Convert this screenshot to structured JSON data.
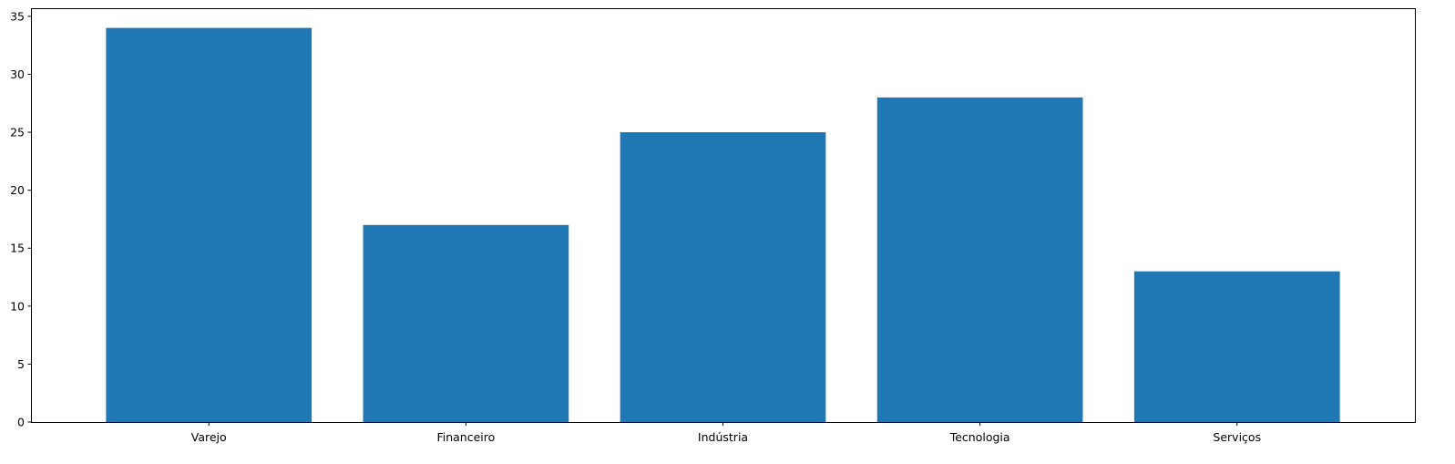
{
  "chart_data": {
    "type": "bar",
    "title": "",
    "xlabel": "",
    "ylabel": "",
    "categories": [
      "Varejo",
      "Financeiro",
      "Indústria",
      "Tecnologia",
      "Serviços"
    ],
    "values": [
      34,
      17,
      25,
      28,
      13
    ],
    "ylim": [
      0,
      35.7
    ],
    "yticks": [
      0,
      5,
      10,
      15,
      20,
      25,
      30,
      35
    ],
    "grid": false,
    "legend": "none",
    "bar_color": "#1f77b4",
    "axis_color": "#000000",
    "background": "#ffffff"
  }
}
